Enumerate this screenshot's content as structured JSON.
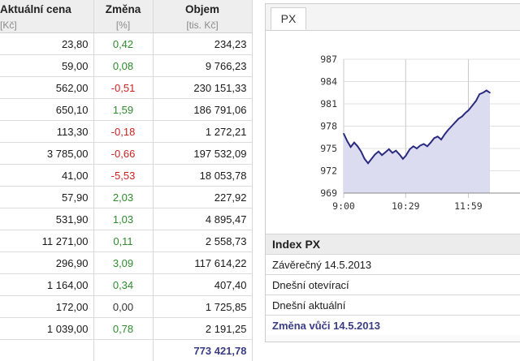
{
  "table": {
    "headers": [
      "Aktuální cena",
      "Změna",
      "Objem"
    ],
    "units": [
      "[Kč]",
      "[%]",
      "[tis. Kč]"
    ],
    "rows": [
      {
        "price": "23,80",
        "change": "0,42",
        "volume": "234,23",
        "dir": "pos"
      },
      {
        "price": "59,00",
        "change": "0,08",
        "volume": "9 766,23",
        "dir": "pos"
      },
      {
        "price": "562,00",
        "change": "-0,51",
        "volume": "230 151,33",
        "dir": "neg"
      },
      {
        "price": "650,10",
        "change": "1,59",
        "volume": "186 791,06",
        "dir": "pos"
      },
      {
        "price": "113,30",
        "change": "-0,18",
        "volume": "1 272,21",
        "dir": "neg"
      },
      {
        "price": "3 785,00",
        "change": "-0,66",
        "volume": "197 532,09",
        "dir": "neg"
      },
      {
        "price": "41,00",
        "change": "-5,53",
        "volume": "18 053,78",
        "dir": "neg"
      },
      {
        "price": "57,90",
        "change": "2,03",
        "volume": "227,92",
        "dir": "pos"
      },
      {
        "price": "531,90",
        "change": "1,03",
        "volume": "4 895,47",
        "dir": "pos"
      },
      {
        "price": "11 271,00",
        "change": "0,11",
        "volume": "2 558,73",
        "dir": "pos"
      },
      {
        "price": "296,90",
        "change": "3,09",
        "volume": "117 614,22",
        "dir": "pos"
      },
      {
        "price": "1 164,00",
        "change": "0,34",
        "volume": "407,40",
        "dir": "pos"
      },
      {
        "price": "172,00",
        "change": "0,00",
        "volume": "1 725,85",
        "dir": "neu"
      },
      {
        "price": "1 039,00",
        "change": "0,78",
        "volume": "2 191,25",
        "dir": "pos"
      }
    ],
    "total": "773 421,78"
  },
  "colors": {
    "positive": "#2e8b2e",
    "negative": "#cc2222",
    "accent": "#3a3d86",
    "chart_fill": "#dcdcf0",
    "chart_line": "#2a2a80"
  },
  "tab": {
    "label": "PX"
  },
  "chart_data": {
    "type": "area",
    "x_ticks": [
      "9:00",
      "10:29",
      "11:59"
    ],
    "y_ticks": [
      "987",
      "984",
      "981",
      "978",
      "975",
      "972",
      "969"
    ],
    "ylim": [
      969,
      987
    ],
    "x": [
      "9:00",
      "9:05",
      "9:10",
      "9:15",
      "9:20",
      "9:25",
      "9:30",
      "9:35",
      "9:40",
      "9:45",
      "9:50",
      "9:55",
      "10:00",
      "10:05",
      "10:10",
      "10:15",
      "10:20",
      "10:25",
      "10:29",
      "10:35",
      "10:40",
      "10:45",
      "10:50",
      "10:55",
      "11:00",
      "11:05",
      "11:10",
      "11:15",
      "11:20",
      "11:25",
      "11:30",
      "11:35",
      "11:40",
      "11:45",
      "11:50",
      "11:55",
      "11:59",
      "12:05",
      "12:10",
      "12:15",
      "12:20",
      "12:25",
      "12:30"
    ],
    "series": [
      {
        "values": [
          977.0,
          976.0,
          975.2,
          975.8,
          975.3,
          974.6,
          973.6,
          973.0,
          973.6,
          974.2,
          974.6,
          974.1,
          974.5,
          974.9,
          974.4,
          974.7,
          974.2,
          973.6,
          974.0,
          974.9,
          975.3,
          975.0,
          975.4,
          975.6,
          975.3,
          975.8,
          976.4,
          976.6,
          976.2,
          976.9,
          977.5,
          978.0,
          978.5,
          979.0,
          979.3,
          979.8,
          980.1,
          980.8,
          981.4,
          982.3,
          982.5,
          982.8,
          982.5
        ]
      }
    ]
  },
  "info": {
    "title": "Index PX",
    "rows": [
      "Závěrečný 14.5.2013",
      "Dnešní otevírací",
      "Dnešní aktuální"
    ],
    "change_label": "Změna vůči 14.5.2013"
  }
}
